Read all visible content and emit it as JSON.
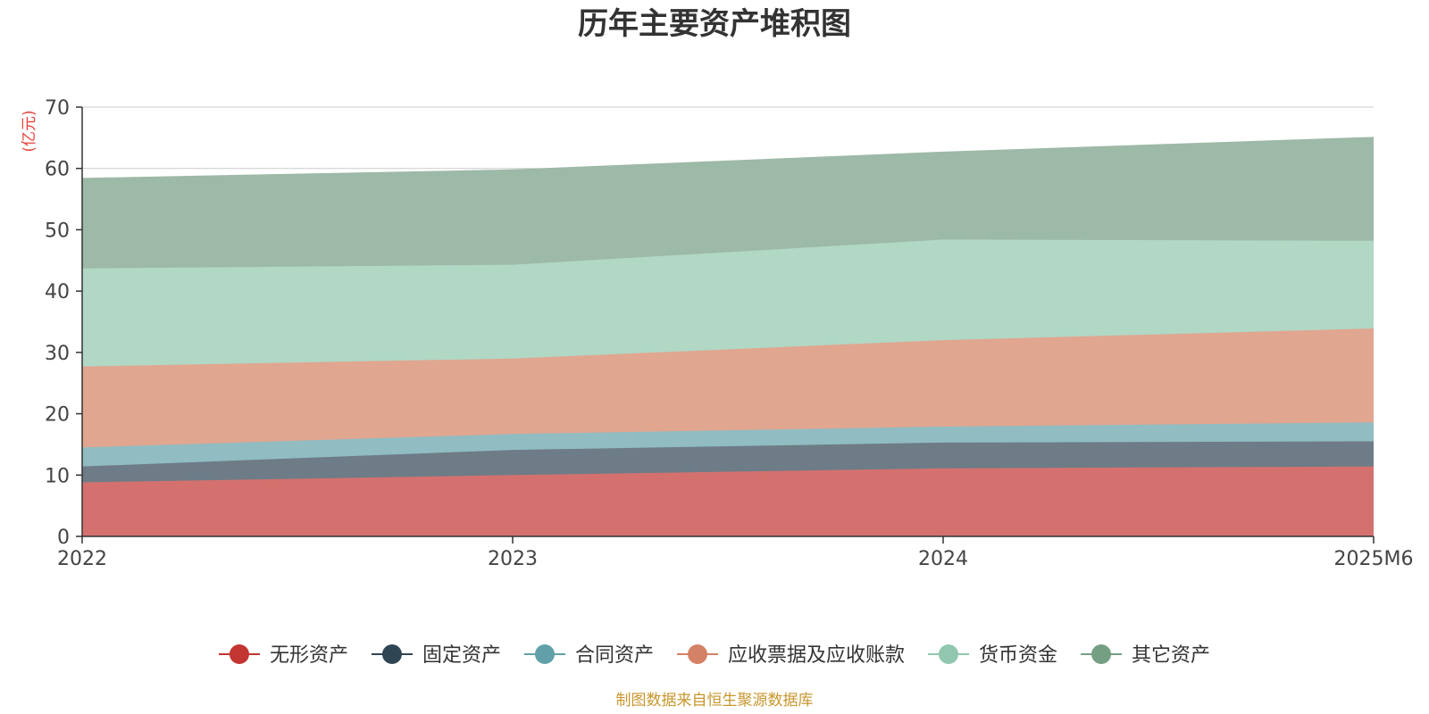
{
  "chart_data": {
    "type": "area",
    "stacked": true,
    "title": "历年主要资产堆积图",
    "unit_label": "(亿元)",
    "x": [
      "2022",
      "2023",
      "2024",
      "2025M6"
    ],
    "ylim": [
      0,
      70
    ],
    "yticks": [
      0,
      10,
      20,
      30,
      40,
      50,
      60,
      70
    ],
    "grid": true,
    "legend_position": "bottom",
    "series": [
      {
        "name": "无形资产",
        "values": [
          8.8,
          10.0,
          11.1,
          11.4
        ],
        "color": "#c23531",
        "fill": "#d4716f"
      },
      {
        "name": "固定资产",
        "values": [
          2.6,
          4.1,
          4.2,
          4.1
        ],
        "color": "#2f4554",
        "fill": "#6e7c87"
      },
      {
        "name": "合同资产",
        "values": [
          3.1,
          2.6,
          2.6,
          3.1
        ],
        "color": "#61a0a8",
        "fill": "#90bcc2"
      },
      {
        "name": "应收票据及应收账款",
        "values": [
          13.2,
          12.3,
          14.1,
          15.3
        ],
        "color": "#d48265",
        "fill": "#e0a690"
      },
      {
        "name": "货币资金",
        "values": [
          16.0,
          15.3,
          16.4,
          14.3
        ],
        "color": "#91c7ae",
        "fill": "#b1d7c5"
      },
      {
        "name": "其它资产",
        "values": [
          14.6,
          15.4,
          14.2,
          16.8
        ],
        "color": "#749f83",
        "fill": "#9db9a7"
      }
    ]
  },
  "footer": {
    "source": "制图数据来自恒生聚源数据库"
  }
}
